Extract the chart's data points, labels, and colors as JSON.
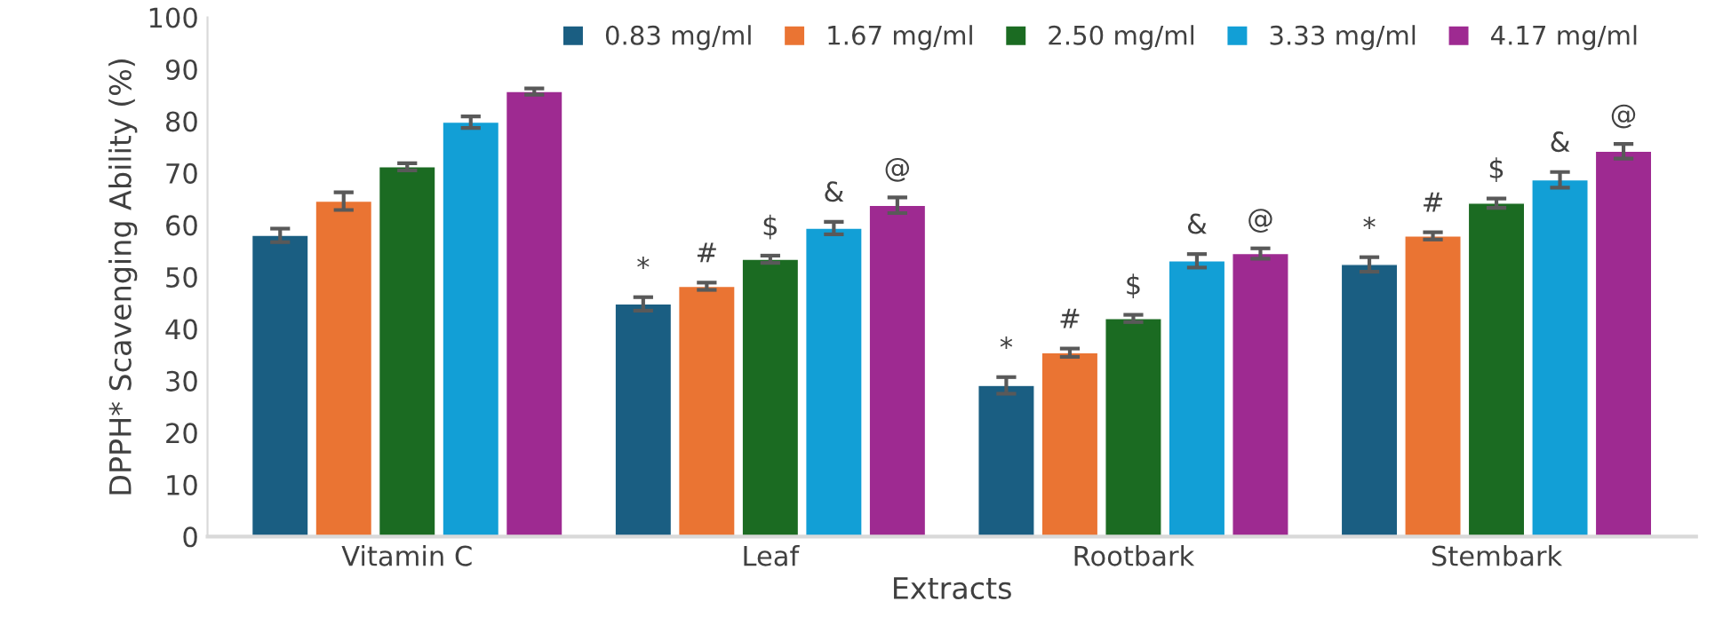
{
  "chart_data": {
    "type": "bar",
    "xlabel": "Extracts",
    "ylabel": "DPPH* Scavenging Ability (%)",
    "categories": [
      "Vitamin C",
      "Leaf",
      "Rootbark",
      "Stembark"
    ],
    "series": [
      {
        "name": "0.83 mg/ml",
        "color": "#1a5e82",
        "values": [
          58.0,
          44.8,
          29.1,
          52.4
        ],
        "errors": [
          1.3,
          1.3,
          1.6,
          1.4
        ]
      },
      {
        "name": "1.67 mg/ml",
        "color": "#ea7433",
        "values": [
          64.6,
          48.2,
          35.4,
          57.9
        ],
        "errors": [
          1.7,
          0.7,
          0.8,
          0.7
        ]
      },
      {
        "name": "2.50 mg/ml",
        "color": "#1b6b22",
        "values": [
          71.2,
          53.4,
          42.0,
          64.2
        ],
        "errors": [
          0.7,
          0.7,
          0.7,
          0.9
        ]
      },
      {
        "name": "3.33 mg/ml",
        "color": "#129fd6",
        "values": [
          79.8,
          59.4,
          53.1,
          68.7
        ],
        "errors": [
          1.1,
          1.2,
          1.3,
          1.5
        ]
      },
      {
        "name": "4.17 mg/ml",
        "color": "#9e2a91",
        "values": [
          85.7,
          63.8,
          54.5,
          74.2
        ],
        "errors": [
          0.6,
          1.5,
          1.0,
          1.4
        ]
      }
    ],
    "annotations": [
      "*",
      "#",
      "$",
      "&",
      "@",
      "*",
      "#",
      "$",
      "&",
      "@",
      "*",
      "#",
      "$",
      "&",
      "@"
    ],
    "ylim": [
      0,
      100
    ],
    "yticks": [
      0,
      10,
      20,
      30,
      40,
      50,
      60,
      70,
      80,
      90,
      100
    ],
    "grid": false,
    "legend": "top"
  }
}
